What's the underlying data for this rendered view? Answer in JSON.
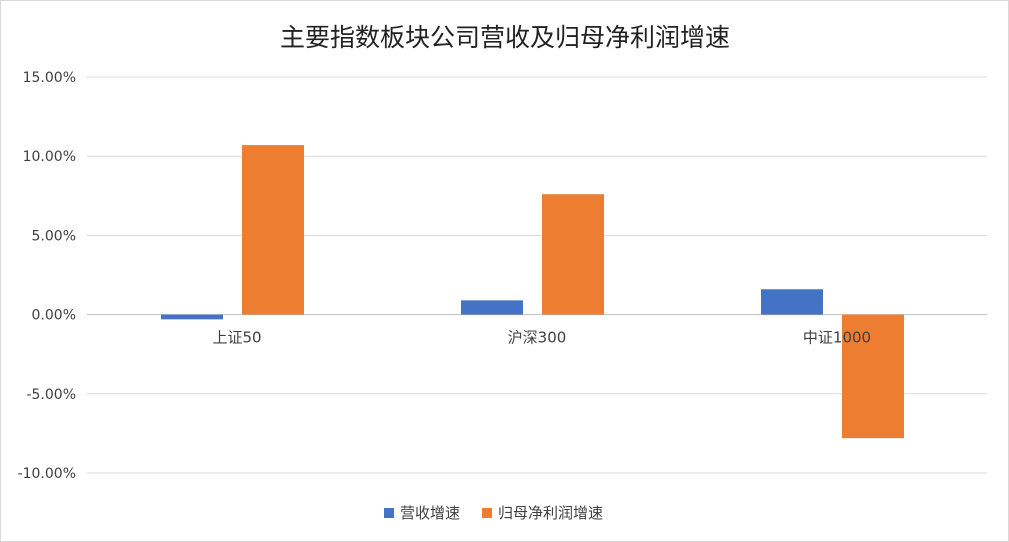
{
  "chart_data": {
    "type": "bar",
    "title": "主要指数板块公司营收及归母净利润增速",
    "categories": [
      "上证50",
      "沪深300",
      "中证1000"
    ],
    "series": [
      {
        "name": "营收增速",
        "values": [
          -0.3,
          0.9,
          1.6
        ],
        "color": "#4472c4"
      },
      {
        "name": "归母净利润增速",
        "values": [
          10.7,
          7.6,
          -7.8
        ],
        "color": "#ed7d31"
      }
    ],
    "ylim": [
      -10,
      15
    ],
    "yticks": [
      15,
      10,
      5,
      0,
      -5,
      -10
    ],
    "ytick_labels": [
      "15.00%",
      "10.00%",
      "5.00%",
      "0.00%",
      "-5.00%",
      "-10.00%"
    ],
    "grid": true,
    "legend_position": "bottom"
  }
}
